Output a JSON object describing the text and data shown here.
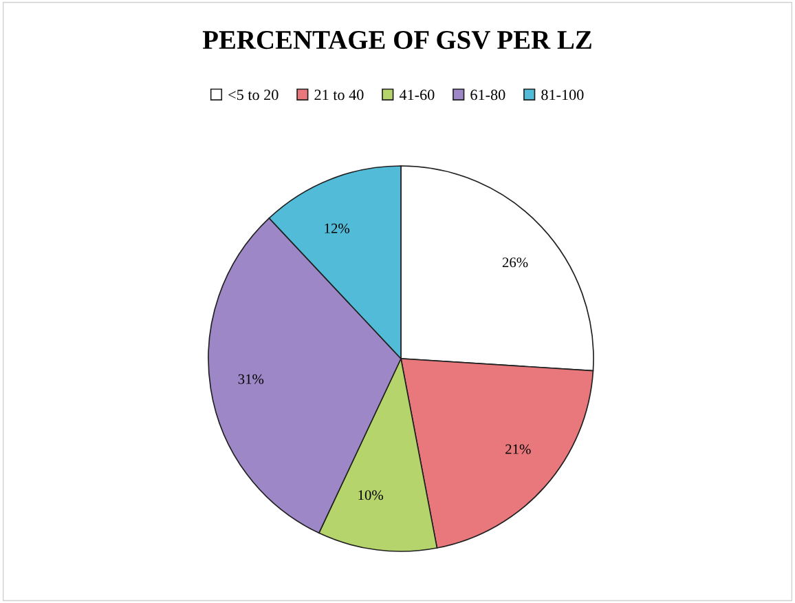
{
  "chart_data": {
    "type": "pie",
    "title": "PERCENTAGE OF GSV PER LZ",
    "categories": [
      "<5 to 20",
      "21 to 40",
      "41-60",
      "61-80",
      "81-100"
    ],
    "values": [
      26,
      21,
      10,
      31,
      12
    ],
    "colors": [
      "#ffffff",
      "#e8787b",
      "#b6d46c",
      "#9d87c6",
      "#52bcd8"
    ],
    "value_labels": [
      "26%",
      "21%",
      "10%",
      "31%",
      "12%"
    ],
    "legend": "top"
  }
}
